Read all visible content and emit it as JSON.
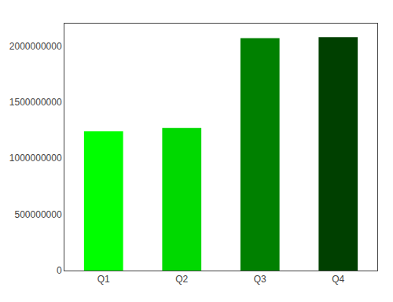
{
  "chart_data": {
    "type": "bar",
    "categories": [
      "Q1",
      "Q2",
      "Q3",
      "Q4"
    ],
    "values": [
      1240000000,
      1270000000,
      2070000000,
      2080000000
    ],
    "colors": [
      "#00ff00",
      "#00d900",
      "#008000",
      "#004000"
    ],
    "ylim": [
      0,
      2200000000
    ],
    "yticks": [
      0,
      500000000,
      1000000000,
      1500000000,
      2000000000
    ],
    "grid": false
  }
}
